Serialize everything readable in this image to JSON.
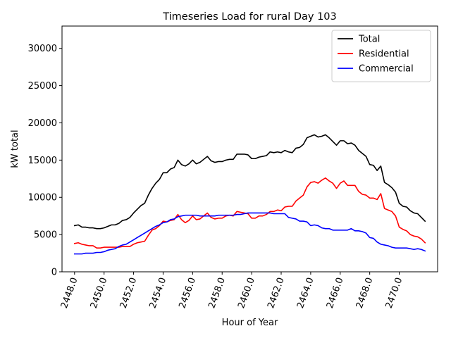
{
  "chart_data": {
    "type": "line",
    "title": "Timeseries Load for rural   Day 103",
    "xlabel": "Hour of Year",
    "ylabel": "kW total",
    "xlim": [
      2447.15,
      2472.6
    ],
    "ylim": [
      0,
      33000
    ],
    "xticks": [
      2448,
      2450,
      2452,
      2454,
      2456,
      2458,
      2460,
      2462,
      2464,
      2466,
      2468,
      2470
    ],
    "xtick_labels": [
      "2448.0",
      "2450.0",
      "2452.0",
      "2454.0",
      "2456.0",
      "2458.0",
      "2460.0",
      "2462.0",
      "2464.0",
      "2466.0",
      "2468.0",
      "2470.0"
    ],
    "yticks": [
      0,
      5000,
      10000,
      15000,
      20000,
      25000,
      30000
    ],
    "ytick_labels": [
      "0",
      "5000",
      "10000",
      "15000",
      "20000",
      "25000",
      "30000"
    ],
    "legend_position": "top-right",
    "x_start": 2448.0,
    "x_step": 0.25,
    "series": [
      {
        "name": "Total",
        "color": "#000000",
        "values": [
          6200,
          6300,
          6000,
          6000,
          5900,
          5900,
          5800,
          5800,
          5900,
          6100,
          6300,
          6300,
          6500,
          6900,
          7000,
          7300,
          7900,
          8400,
          8900,
          9200,
          10300,
          11200,
          11900,
          12400,
          13300,
          13300,
          13800,
          14000,
          15000,
          14400,
          14200,
          14500,
          15000,
          14500,
          14700,
          15100,
          15500,
          14900,
          14700,
          14800,
          14800,
          15000,
          15100,
          15100,
          15800,
          15800,
          15800,
          15700,
          15200,
          15200,
          15400,
          15500,
          15600,
          16100,
          16000,
          16100,
          16000,
          16300,
          16100,
          16000,
          16600,
          16700,
          17100,
          18000,
          18200,
          18400,
          18100,
          18200,
          18400,
          18000,
          17500,
          17000,
          17600,
          17600,
          17200,
          17300,
          17000,
          16300,
          15900,
          15500,
          14400,
          14300,
          13600,
          14200,
          12000,
          11700,
          11300,
          10700,
          9200,
          8800,
          8700,
          8200,
          7900,
          7800,
          7300,
          6800
        ]
      },
      {
        "name": "Residential",
        "color": "#ff0000",
        "values": [
          3800,
          3900,
          3700,
          3600,
          3500,
          3500,
          3200,
          3200,
          3300,
          3300,
          3300,
          3300,
          3300,
          3400,
          3400,
          3400,
          3700,
          3900,
          4000,
          4100,
          4900,
          5600,
          5800,
          6200,
          6800,
          6700,
          6900,
          7000,
          7700,
          7000,
          6600,
          6900,
          7500,
          7000,
          7100,
          7500,
          7900,
          7300,
          7100,
          7200,
          7200,
          7500,
          7600,
          7500,
          8100,
          8000,
          7900,
          7800,
          7200,
          7200,
          7500,
          7500,
          7700,
          8100,
          8100,
          8300,
          8200,
          8700,
          8800,
          8800,
          9500,
          9900,
          10300,
          11400,
          12000,
          12100,
          11900,
          12300,
          12600,
          12200,
          11900,
          11200,
          11900,
          12200,
          11600,
          11600,
          11600,
          10800,
          10400,
          10300,
          9900,
          9900,
          9700,
          10500,
          8500,
          8300,
          8100,
          7500,
          6000,
          5700,
          5500,
          5000,
          4800,
          4700,
          4400,
          3900
        ]
      },
      {
        "name": "Commercial",
        "color": "#0000ff",
        "values": [
          2400,
          2400,
          2400,
          2500,
          2500,
          2500,
          2600,
          2600,
          2700,
          2900,
          3000,
          3100,
          3400,
          3600,
          3700,
          4000,
          4300,
          4600,
          4900,
          5200,
          5500,
          5800,
          6100,
          6300,
          6600,
          6700,
          7000,
          7100,
          7400,
          7500,
          7600,
          7600,
          7600,
          7600,
          7500,
          7500,
          7500,
          7500,
          7500,
          7600,
          7600,
          7600,
          7600,
          7600,
          7700,
          7700,
          7800,
          7900,
          7900,
          7900,
          7900,
          7900,
          7900,
          7900,
          7800,
          7800,
          7800,
          7800,
          7300,
          7200,
          7100,
          6800,
          6800,
          6700,
          6200,
          6300,
          6200,
          5900,
          5800,
          5800,
          5600,
          5600,
          5600,
          5600,
          5600,
          5800,
          5500,
          5500,
          5400,
          5200,
          4600,
          4500,
          4000,
          3700,
          3600,
          3500,
          3300,
          3200,
          3200,
          3200,
          3200,
          3100,
          3000,
          3100,
          3000,
          2800
        ]
      }
    ]
  }
}
